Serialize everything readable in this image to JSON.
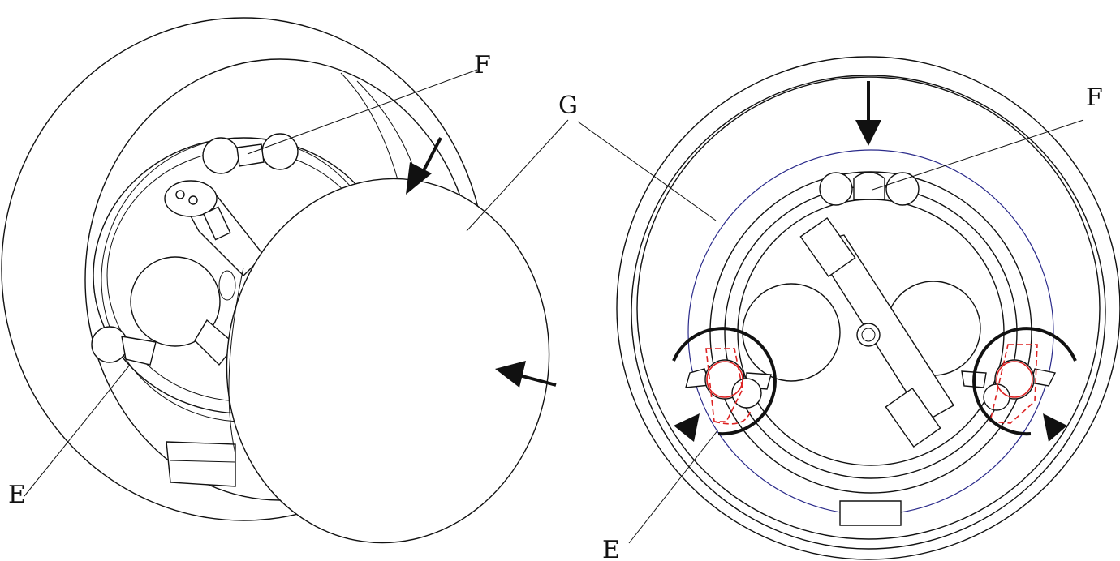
{
  "labels": {
    "e_left": "E",
    "f_left": "F",
    "g": "G",
    "f_right": "F",
    "e_right": "E"
  },
  "colors": {
    "line": "#111111",
    "highlight_red": "#d22222",
    "outline_blue": "#2a2a8a",
    "background": "#ffffff"
  }
}
